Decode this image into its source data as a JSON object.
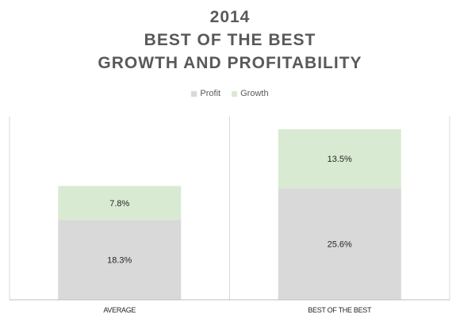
{
  "chart_data": {
    "type": "bar",
    "stacked": true,
    "title_lines": [
      "2014",
      "BEST OF THE BEST",
      "GROWTH AND PROFITABILITY"
    ],
    "categories": [
      "AVERAGE",
      "BEST OF THE BEST"
    ],
    "series": [
      {
        "name": "Profit",
        "values": [
          18.3,
          25.6
        ],
        "labels": [
          "18.3%",
          "25.6%"
        ],
        "color": "#d9d9d9"
      },
      {
        "name": "Growth",
        "values": [
          7.8,
          13.5
        ],
        "labels": [
          "7.8%",
          "13.5%"
        ],
        "color": "#d9ead3"
      }
    ],
    "ylim": [
      0,
      42
    ],
    "legend_position": "top-center",
    "grid": false
  }
}
